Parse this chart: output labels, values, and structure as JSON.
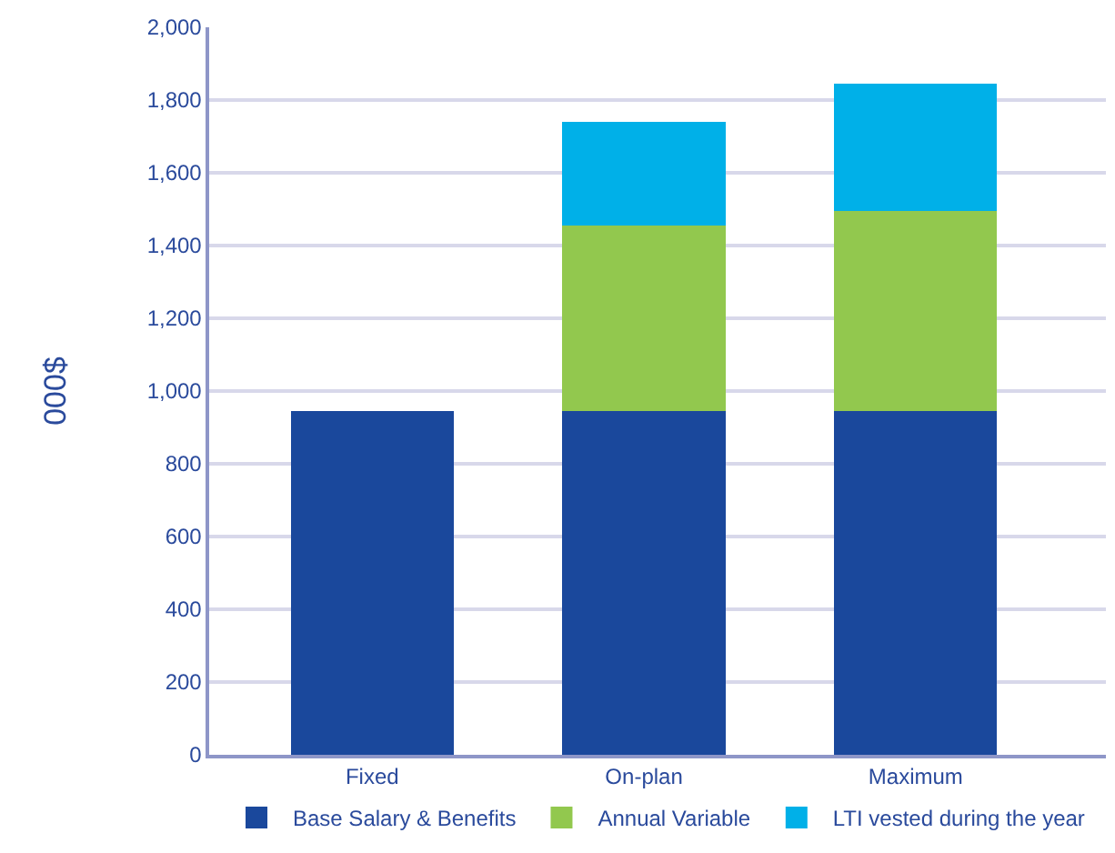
{
  "chart_data": {
    "type": "bar",
    "stacked": true,
    "ylabel": "000$",
    "categories": [
      "Fixed",
      "On-plan",
      "Maximum"
    ],
    "series": [
      {
        "name": "Base Salary & Benefits",
        "color": "#1a489c",
        "values": [
          945,
          945,
          945
        ]
      },
      {
        "name": "Annual Variable",
        "color": "#92c84e",
        "values": [
          null,
          510,
          550
        ]
      },
      {
        "name": "LTI vested during the year",
        "color": "#00b0e8",
        "values": [
          null,
          285,
          350
        ]
      }
    ],
    "ylim": [
      0,
      2000
    ],
    "yticks": [
      {
        "value": 0,
        "label": "0"
      },
      {
        "value": 200,
        "label": "200"
      },
      {
        "value": 400,
        "label": "400"
      },
      {
        "value": 600,
        "label": "600"
      },
      {
        "value": 800,
        "label": "800"
      },
      {
        "value": 1000,
        "label": "1,000"
      },
      {
        "value": 1200,
        "label": "1,200"
      },
      {
        "value": 1400,
        "label": "1,400"
      },
      {
        "value": 1600,
        "label": "1,600"
      },
      {
        "value": 1800,
        "label": "1,800"
      },
      {
        "value": 2000,
        "label": "2,000"
      }
    ],
    "grid": "y",
    "legend": "bottom"
  }
}
